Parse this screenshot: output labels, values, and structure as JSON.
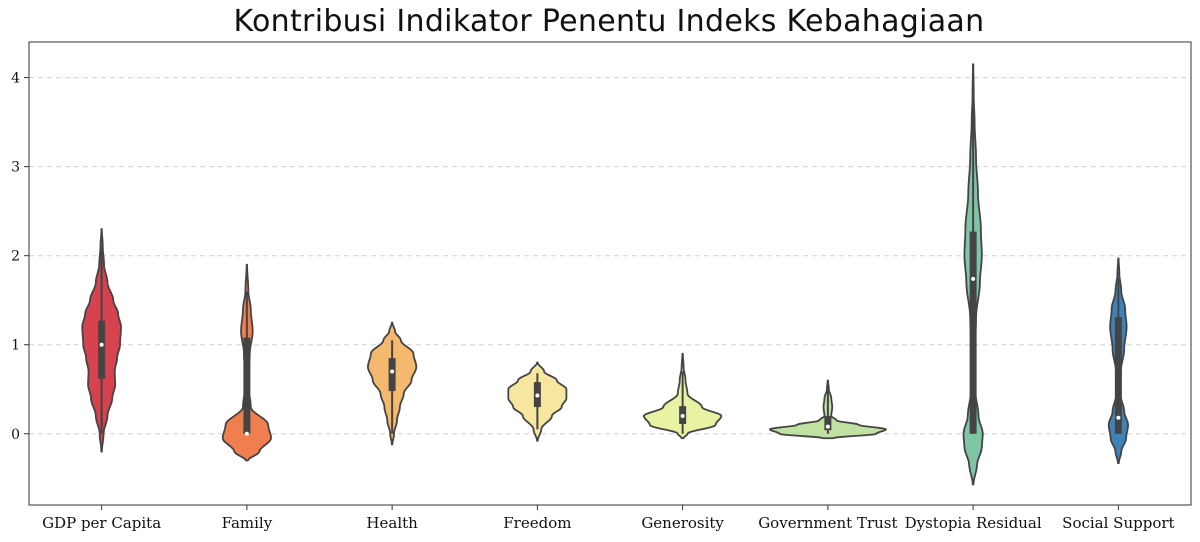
{
  "chart_data": {
    "type": "violin",
    "title": "Kontribusi Indikator Penentu Indeks Kebahagiaan",
    "xlabel": "",
    "ylabel": "",
    "ylim": [
      -0.8,
      4.4
    ],
    "yticks": [
      0,
      1,
      2,
      3,
      4
    ],
    "grid": "y-dashed",
    "categories": [
      "GDP per Capita",
      "Family",
      "Health",
      "Freedom",
      "Generosity",
      "Government Trust",
      "Dystopia Residual",
      "Social Support"
    ],
    "series": [
      {
        "category": "GDP per Capita",
        "color": "#d6424e",
        "kde_min": -0.2,
        "kde_max": 2.3,
        "whisker": [
          0,
          2.1
        ],
        "q1": 0.62,
        "median": 1.0,
        "q3": 1.27,
        "density": [
          [
            -0.2,
            0.003
          ],
          [
            0,
            0.02
          ],
          [
            0.2,
            0.06
          ],
          [
            0.4,
            0.11
          ],
          [
            0.55,
            0.14
          ],
          [
            0.7,
            0.135
          ],
          [
            0.85,
            0.16
          ],
          [
            1.0,
            0.19
          ],
          [
            1.2,
            0.2
          ],
          [
            1.35,
            0.17
          ],
          [
            1.5,
            0.12
          ],
          [
            1.7,
            0.06
          ],
          [
            1.9,
            0.025
          ],
          [
            2.1,
            0.012
          ],
          [
            2.3,
            0.002
          ]
        ]
      },
      {
        "category": "Family",
        "color": "#f07e4f",
        "kde_min": -0.3,
        "kde_max": 1.9,
        "whisker": [
          0,
          1.6
        ],
        "q1": 0.0,
        "median": 0.0,
        "q3": 1.08,
        "density": [
          [
            -0.3,
            0.01
          ],
          [
            -0.2,
            0.13
          ],
          [
            -0.05,
            0.25
          ],
          [
            0.1,
            0.22
          ],
          [
            0.3,
            0.04
          ],
          [
            0.6,
            0.008
          ],
          [
            0.9,
            0.03
          ],
          [
            1.15,
            0.06
          ],
          [
            1.4,
            0.04
          ],
          [
            1.6,
            0.015
          ],
          [
            1.9,
            0.002
          ]
        ]
      },
      {
        "category": "Health",
        "color": "#f4b86e",
        "kde_min": -0.12,
        "kde_max": 1.25,
        "whisker": [
          0,
          1.05
        ],
        "q1": 0.48,
        "median": 0.7,
        "q3": 0.85,
        "density": [
          [
            -0.12,
            0.003
          ],
          [
            0,
            0.02
          ],
          [
            0.15,
            0.05
          ],
          [
            0.3,
            0.08
          ],
          [
            0.45,
            0.12
          ],
          [
            0.6,
            0.2
          ],
          [
            0.75,
            0.25
          ],
          [
            0.9,
            0.22
          ],
          [
            1.05,
            0.09
          ],
          [
            1.15,
            0.03
          ],
          [
            1.25,
            0.002
          ]
        ]
      },
      {
        "category": "Freedom",
        "color": "#f6e6a0",
        "kde_min": -0.08,
        "kde_max": 0.8,
        "whisker": [
          0.05,
          0.68
        ],
        "q1": 0.3,
        "median": 0.43,
        "q3": 0.58,
        "density": [
          [
            -0.08,
            0.003
          ],
          [
            0.05,
            0.04
          ],
          [
            0.2,
            0.15
          ],
          [
            0.3,
            0.25
          ],
          [
            0.4,
            0.3
          ],
          [
            0.5,
            0.3
          ],
          [
            0.6,
            0.2
          ],
          [
            0.7,
            0.07
          ],
          [
            0.8,
            0.003
          ]
        ]
      },
      {
        "category": "Generosity",
        "color": "#e8f2a2",
        "kde_min": -0.05,
        "kde_max": 0.9,
        "whisker": [
          0,
          0.7
        ],
        "q1": 0.11,
        "median": 0.2,
        "q3": 0.31,
        "density": [
          [
            -0.05,
            0.01
          ],
          [
            0,
            0.05
          ],
          [
            0.1,
            0.34
          ],
          [
            0.2,
            0.4
          ],
          [
            0.3,
            0.2
          ],
          [
            0.45,
            0.05
          ],
          [
            0.6,
            0.03
          ],
          [
            0.75,
            0.01
          ],
          [
            0.9,
            0.002
          ]
        ]
      },
      {
        "category": "Government Trust",
        "color": "#bfe2a2",
        "kde_min": -0.05,
        "kde_max": 0.6,
        "whisker": [
          0,
          0.5
        ],
        "q1": 0.04,
        "median": 0.08,
        "q3": 0.2,
        "density": [
          [
            -0.05,
            0.05
          ],
          [
            0,
            0.5
          ],
          [
            0.05,
            0.6
          ],
          [
            0.1,
            0.32
          ],
          [
            0.15,
            0.09
          ],
          [
            0.2,
            0.035
          ],
          [
            0.3,
            0.045
          ],
          [
            0.4,
            0.035
          ],
          [
            0.5,
            0.01
          ],
          [
            0.6,
            0.002
          ]
        ]
      },
      {
        "category": "Dystopia Residual",
        "color": "#7fc5a6",
        "kde_min": -0.57,
        "kde_max": 4.15,
        "whisker": [
          0,
          3.65
        ],
        "q1": 0.0,
        "median": 1.74,
        "q3": 2.27,
        "density": [
          [
            -0.57,
            0.003
          ],
          [
            -0.35,
            0.04
          ],
          [
            -0.15,
            0.09
          ],
          [
            0,
            0.1
          ],
          [
            0.2,
            0.055
          ],
          [
            0.5,
            0.02
          ],
          [
            0.9,
            0.015
          ],
          [
            1.3,
            0.03
          ],
          [
            1.7,
            0.07
          ],
          [
            2.0,
            0.09
          ],
          [
            2.3,
            0.08
          ],
          [
            2.7,
            0.05
          ],
          [
            3.1,
            0.03
          ],
          [
            3.5,
            0.015
          ],
          [
            3.8,
            0.006
          ],
          [
            4.15,
            0.002
          ]
        ]
      },
      {
        "category": "Social Support",
        "color": "#3e82b9",
        "kde_min": -0.33,
        "kde_max": 1.97,
        "whisker": [
          0,
          1.75
        ],
        "q1": 0.0,
        "median": 0.18,
        "q3": 1.31,
        "density": [
          [
            -0.33,
            0.004
          ],
          [
            -0.2,
            0.03
          ],
          [
            -0.05,
            0.08
          ],
          [
            0.1,
            0.1
          ],
          [
            0.25,
            0.06
          ],
          [
            0.45,
            0.02
          ],
          [
            0.7,
            0.025
          ],
          [
            0.95,
            0.06
          ],
          [
            1.2,
            0.085
          ],
          [
            1.4,
            0.07
          ],
          [
            1.6,
            0.03
          ],
          [
            1.8,
            0.01
          ],
          [
            1.97,
            0.002
          ]
        ]
      }
    ]
  }
}
